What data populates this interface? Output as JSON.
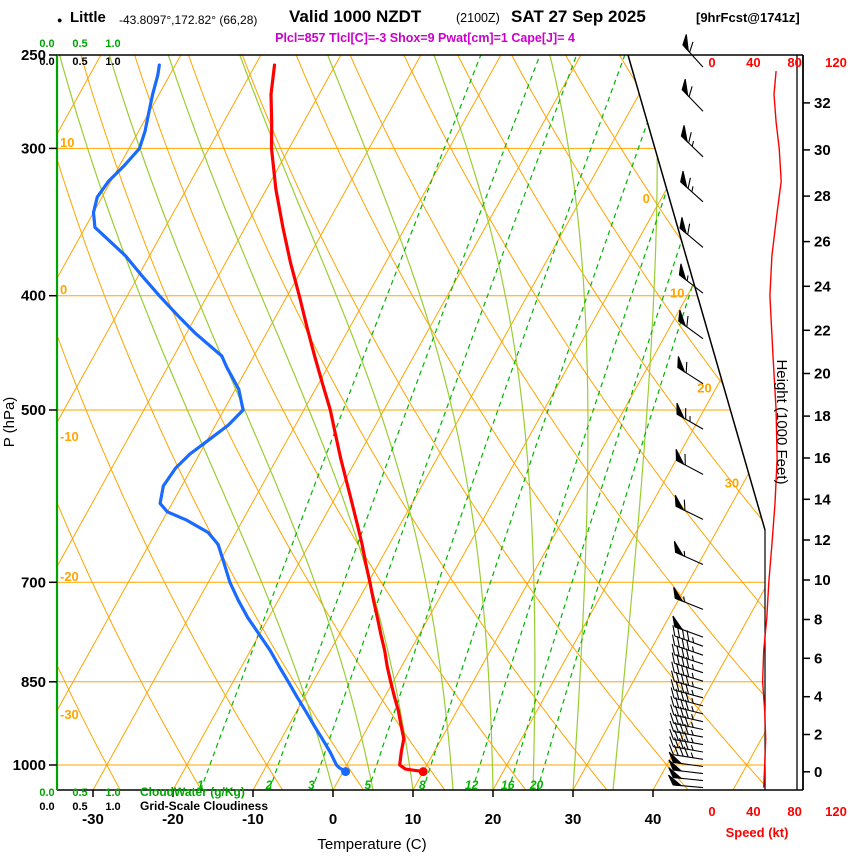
{
  "header": {
    "station_marker": "●",
    "station_name": "Little",
    "station_coords": "-43.8097°,172.82° (66,28)",
    "valid_label": "Valid 1000 NZDT",
    "valid_utc": "(2100Z)",
    "valid_date": "SAT 27 Sep 2025",
    "forecast_info": "[9hrFcst@1741z]",
    "params_line": "Plcl=857 Tlcl[C]=-3 Shox=9 Pwat[cm]=1 Cape[J]= 4",
    "params_color": "#cc00cc"
  },
  "axes": {
    "pressure": {
      "title": "P (hPa)",
      "ticks": [
        250,
        300,
        400,
        500,
        700,
        850,
        1000
      ],
      "min": 250,
      "max": 1050
    },
    "temperature": {
      "title": "Temperature (C)",
      "ticks": [
        -30,
        -20,
        -10,
        0,
        10,
        20,
        30,
        40
      ]
    },
    "height": {
      "title": "Height (1000 Feet)",
      "ticks": [
        0,
        2,
        4,
        6,
        8,
        10,
        12,
        14,
        16,
        18,
        20,
        22,
        24,
        26,
        28,
        30,
        32
      ]
    },
    "speed": {
      "title": "Speed (kt)",
      "ticks": [
        0,
        40,
        80,
        120
      ],
      "color": "#ff0000"
    },
    "cloudwater": {
      "title": "CloudWater (g/Kg)",
      "ticks": [
        "0.0",
        "0.5",
        "1.0"
      ],
      "color": "#00a400"
    },
    "cloudiness": {
      "title": "Grid-Scale Cloudiness",
      "ticks": [
        "0.0",
        "0.5",
        "1.0"
      ],
      "color": "#000000"
    }
  },
  "chart_data": {
    "type": "line",
    "variant": "skew-t-log-p-sounding",
    "title": "Little sounding valid 1000 NZDT (2100Z) SAT 27 Sep 2025",
    "pressure_range_hPa": [
      1050,
      250
    ],
    "surface": {
      "pressure_hPa": 1013,
      "temperature_C": 10.0,
      "dewpoint_C": 0.3
    },
    "series": [
      {
        "name": "temperature",
        "color": "#ff0000",
        "units": [
          "hPa",
          "C"
        ],
        "points": [
          [
            1013,
            10.0
          ],
          [
            1008,
            7.6
          ],
          [
            1000,
            6.6
          ],
          [
            975,
            5.9
          ],
          [
            950,
            5.3
          ],
          [
            925,
            4.0
          ],
          [
            900,
            2.7
          ],
          [
            875,
            1.2
          ],
          [
            850,
            -0.3
          ],
          [
            825,
            -1.8
          ],
          [
            800,
            -3.2
          ],
          [
            775,
            -4.8
          ],
          [
            750,
            -6.4
          ],
          [
            725,
            -8.1
          ],
          [
            700,
            -9.8
          ],
          [
            675,
            -11.6
          ],
          [
            650,
            -13.4
          ],
          [
            625,
            -15.4
          ],
          [
            600,
            -17.5
          ],
          [
            575,
            -19.7
          ],
          [
            550,
            -22.0
          ],
          [
            525,
            -24.3
          ],
          [
            500,
            -26.7
          ],
          [
            475,
            -29.5
          ],
          [
            450,
            -32.4
          ],
          [
            425,
            -35.4
          ],
          [
            400,
            -38.5
          ],
          [
            375,
            -41.9
          ],
          [
            350,
            -45.3
          ],
          [
            325,
            -48.8
          ],
          [
            300,
            -52.2
          ],
          [
            285,
            -54.0
          ],
          [
            270,
            -56.0
          ],
          [
            255,
            -57.6
          ]
        ]
      },
      {
        "name": "dewpoint",
        "color": "#1a6aff",
        "units": [
          "hPa",
          "C"
        ],
        "points": [
          [
            1013,
            0.3
          ],
          [
            1005,
            -0.8
          ],
          [
            1000,
            -1.3
          ],
          [
            975,
            -3.0
          ],
          [
            950,
            -4.9
          ],
          [
            925,
            -6.9
          ],
          [
            900,
            -8.9
          ],
          [
            875,
            -11.0
          ],
          [
            850,
            -13.1
          ],
          [
            825,
            -15.3
          ],
          [
            800,
            -17.5
          ],
          [
            775,
            -20.0
          ],
          [
            750,
            -22.6
          ],
          [
            725,
            -25.0
          ],
          [
            700,
            -27.3
          ],
          [
            675,
            -29.3
          ],
          [
            650,
            -31.4
          ],
          [
            635,
            -33.5
          ],
          [
            620,
            -37.0
          ],
          [
            610,
            -40.0
          ],
          [
            600,
            -41.5
          ],
          [
            580,
            -42.3
          ],
          [
            560,
            -42.0
          ],
          [
            545,
            -41.2
          ],
          [
            530,
            -39.8
          ],
          [
            515,
            -38.4
          ],
          [
            500,
            -37.6
          ],
          [
            480,
            -39.6
          ],
          [
            460,
            -42.6
          ],
          [
            450,
            -44.0
          ],
          [
            430,
            -49.0
          ],
          [
            415,
            -52.5
          ],
          [
            400,
            -56.0
          ],
          [
            385,
            -59.5
          ],
          [
            370,
            -63.0
          ],
          [
            350,
            -68.8
          ],
          [
            340,
            -70.0
          ],
          [
            330,
            -70.6
          ],
          [
            320,
            -70.3
          ],
          [
            310,
            -69.4
          ],
          [
            300,
            -68.7
          ],
          [
            290,
            -69.2
          ],
          [
            280,
            -70.0
          ],
          [
            270,
            -70.8
          ],
          [
            260,
            -71.5
          ],
          [
            255,
            -72.0
          ]
        ]
      },
      {
        "name": "wind_speed",
        "color": "#ff0000",
        "units": [
          "hPa",
          "kt"
        ],
        "points": [
          [
            1045,
            50
          ],
          [
            1000,
            51
          ],
          [
            950,
            52
          ],
          [
            900,
            51
          ],
          [
            850,
            49
          ],
          [
            800,
            50
          ],
          [
            750,
            53
          ],
          [
            700,
            55
          ],
          [
            650,
            58
          ],
          [
            600,
            61
          ],
          [
            550,
            63
          ],
          [
            500,
            62
          ],
          [
            450,
            59
          ],
          [
            400,
            56
          ],
          [
            370,
            58
          ],
          [
            340,
            63
          ],
          [
            320,
            67
          ],
          [
            300,
            65
          ],
          [
            285,
            62
          ],
          [
            270,
            60
          ],
          [
            258,
            62
          ]
        ]
      }
    ],
    "wind_barbs": {
      "units": [
        "hPa",
        "kt",
        "deg_from"
      ],
      "points": [
        [
          1045,
          50,
          275
        ],
        [
          1031,
          50,
          276
        ],
        [
          1017,
          48,
          277
        ],
        [
          1003,
          48,
          278
        ],
        [
          989,
          47,
          279
        ],
        [
          975,
          47,
          280
        ],
        [
          961,
          46,
          280
        ],
        [
          947,
          46,
          281
        ],
        [
          933,
          45,
          282
        ],
        [
          919,
          45,
          283
        ],
        [
          905,
          45,
          284
        ],
        [
          891,
          44,
          285
        ],
        [
          877,
          44,
          285
        ],
        [
          863,
          43,
          286
        ],
        [
          849,
          43,
          287
        ],
        [
          835,
          44,
          288
        ],
        [
          821,
          45,
          288
        ],
        [
          807,
          46,
          289
        ],
        [
          793,
          47,
          290
        ],
        [
          779,
          48,
          290
        ],
        [
          738,
          53,
          292
        ],
        [
          676,
          55,
          294
        ],
        [
          619,
          58,
          296
        ],
        [
          567,
          61,
          298
        ],
        [
          519,
          63,
          300
        ],
        [
          475,
          62,
          303
        ],
        [
          435,
          59,
          306
        ],
        [
          398,
          56,
          308
        ],
        [
          364,
          58,
          310
        ],
        [
          333,
          64,
          312
        ],
        [
          305,
          66,
          314
        ],
        [
          279,
          61,
          316
        ],
        [
          256,
          62,
          318
        ]
      ]
    },
    "grid": {
      "isobars": [
        300,
        400,
        500,
        700,
        850,
        1000
      ],
      "isotherms_C": {
        "min": -90,
        "max": 50,
        "step": 10
      },
      "dry_adiabats_C": {
        "min": -30,
        "max": 120,
        "step": 10
      },
      "moist_adiabats_C": [
        0,
        5,
        10,
        15,
        20,
        25,
        30,
        35
      ],
      "mixing_ratio_g_kg": [
        1,
        2,
        3,
        5,
        8,
        12,
        16,
        20
      ],
      "isotherm_labels": [
        0,
        10,
        20,
        30
      ],
      "adiabat_labels": [
        {
          "value": 10,
          "y": 143
        },
        {
          "value": 0,
          "y": 290
        },
        {
          "value": -10,
          "y": 437
        },
        {
          "value": -20,
          "y": 577
        },
        {
          "value": -30,
          "y": 715
        }
      ],
      "colors": {
        "grid": "#ffa500",
        "mixing": "#00b400",
        "moist": "#9acd32",
        "border": "#000000",
        "cloud_axis": "#00a400"
      }
    }
  }
}
